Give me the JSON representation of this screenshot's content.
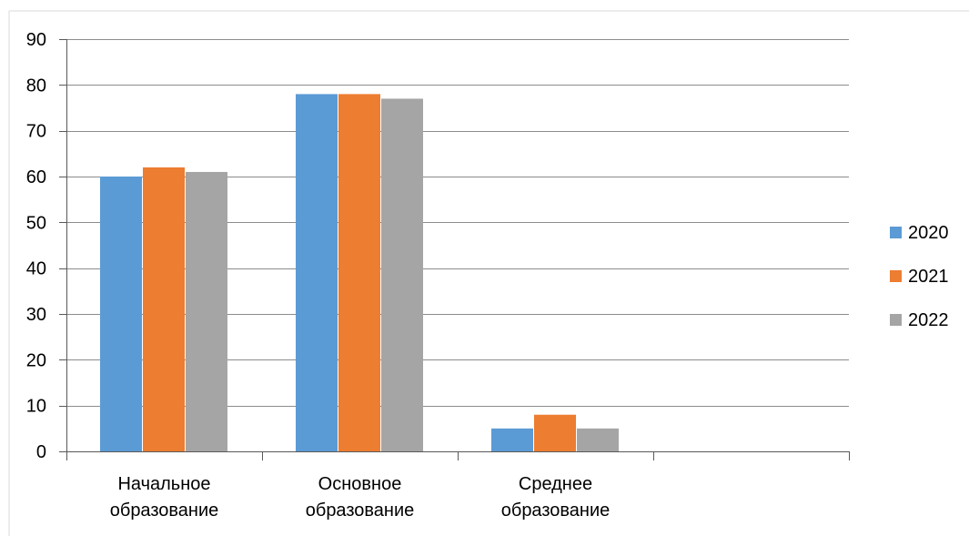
{
  "chart_data": {
    "type": "bar",
    "categories": [
      [
        "Начальное",
        "образование"
      ],
      [
        "Основное",
        "образование"
      ],
      [
        "Среднее",
        "образование"
      ],
      [
        "",
        ""
      ]
    ],
    "series": [
      {
        "name": "2020",
        "color": "#5b9bd5",
        "values": [
          60,
          78,
          5,
          null
        ]
      },
      {
        "name": "2021",
        "color": "#ed7d31",
        "values": [
          62,
          78,
          8,
          null
        ]
      },
      {
        "name": "2022",
        "color": "#a5a5a5",
        "values": [
          61,
          77,
          5,
          null
        ]
      }
    ],
    "ylim": [
      0,
      90
    ],
    "yticks": [
      0,
      10,
      20,
      30,
      40,
      50,
      60,
      70,
      80,
      90
    ],
    "grid": true,
    "legend_position": "right",
    "title": "",
    "xlabel": "",
    "ylabel": ""
  }
}
